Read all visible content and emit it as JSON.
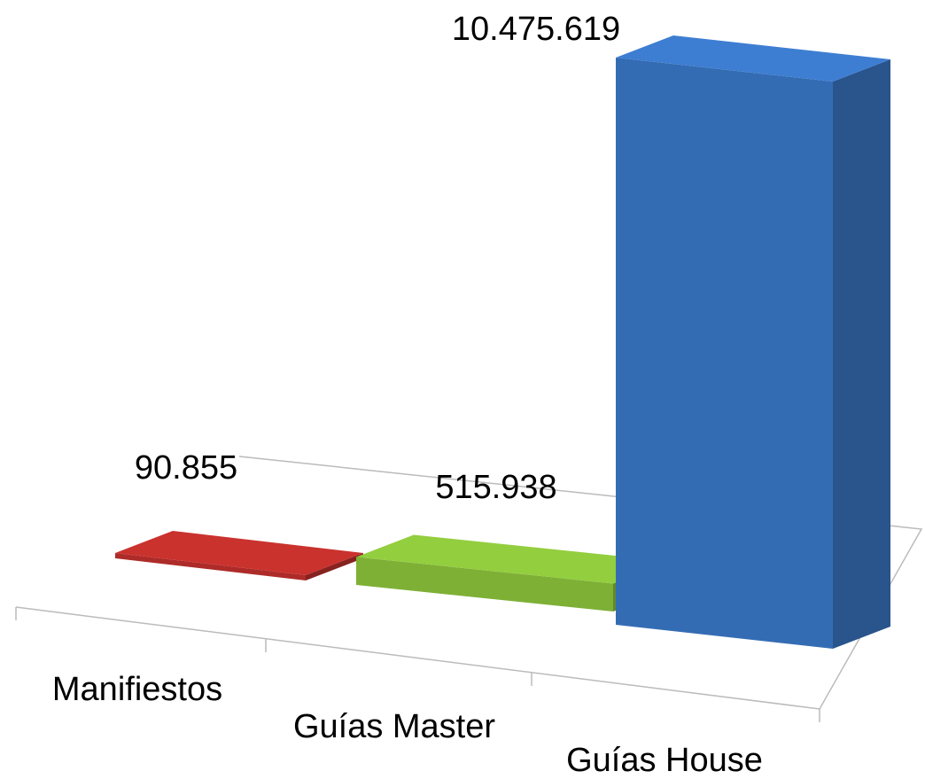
{
  "chart_data": {
    "type": "bar3d",
    "categories": [
      "Manifiestos",
      "Guías Master",
      "Guías House"
    ],
    "values": [
      90855,
      515938,
      10475619
    ],
    "value_labels": [
      "90.855",
      "515.938",
      "10.475.619"
    ],
    "colors": [
      "#c0302c",
      "#8cc43c",
      "#3a78c8"
    ]
  }
}
